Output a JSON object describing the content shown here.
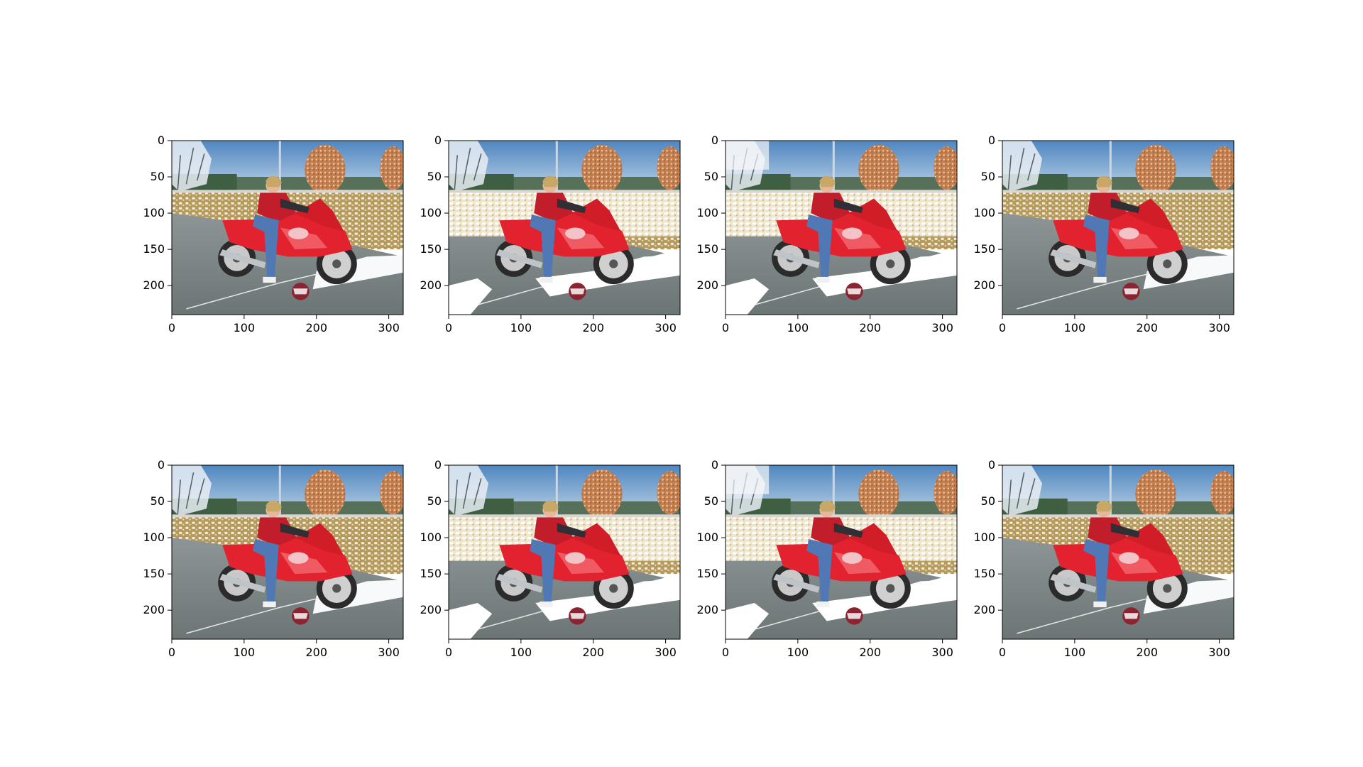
{
  "chart_data": {
    "type": "image-grid",
    "rows": 2,
    "cols": 4,
    "title": "",
    "panels": [
      {
        "variant": "a",
        "xlim": [
          0,
          320
        ],
        "ylim": [
          240,
          0
        ],
        "xticks": [
          0,
          100,
          200,
          300
        ],
        "yticks": [
          0,
          50,
          100,
          150,
          200
        ]
      },
      {
        "variant": "b",
        "xlim": [
          0,
          320
        ],
        "ylim": [
          240,
          0
        ],
        "xticks": [
          0,
          100,
          200,
          300
        ],
        "yticks": [
          0,
          50,
          100,
          150,
          200
        ]
      },
      {
        "variant": "c",
        "xlim": [
          0,
          320
        ],
        "ylim": [
          240,
          0
        ],
        "xticks": [
          0,
          100,
          200,
          300
        ],
        "yticks": [
          0,
          50,
          100,
          150,
          200
        ]
      },
      {
        "variant": "a",
        "xlim": [
          0,
          320
        ],
        "ylim": [
          240,
          0
        ],
        "xticks": [
          0,
          100,
          200,
          300
        ],
        "yticks": [
          0,
          50,
          100,
          150,
          200
        ]
      },
      {
        "variant": "a",
        "xlim": [
          0,
          320
        ],
        "ylim": [
          240,
          0
        ],
        "xticks": [
          0,
          100,
          200,
          300
        ],
        "yticks": [
          0,
          50,
          100,
          150,
          200
        ]
      },
      {
        "variant": "b",
        "xlim": [
          0,
          320
        ],
        "ylim": [
          240,
          0
        ],
        "xticks": [
          0,
          100,
          200,
          300
        ],
        "yticks": [
          0,
          50,
          100,
          150,
          200
        ]
      },
      {
        "variant": "c",
        "xlim": [
          0,
          320
        ],
        "ylim": [
          240,
          0
        ],
        "xticks": [
          0,
          100,
          200,
          300
        ],
        "yticks": [
          0,
          50,
          100,
          150,
          200
        ]
      },
      {
        "variant": "a",
        "xlim": [
          0,
          320
        ],
        "ylim": [
          240,
          0
        ],
        "xticks": [
          0,
          100,
          200,
          300
        ],
        "yticks": [
          0,
          50,
          100,
          150,
          200
        ]
      }
    ]
  }
}
